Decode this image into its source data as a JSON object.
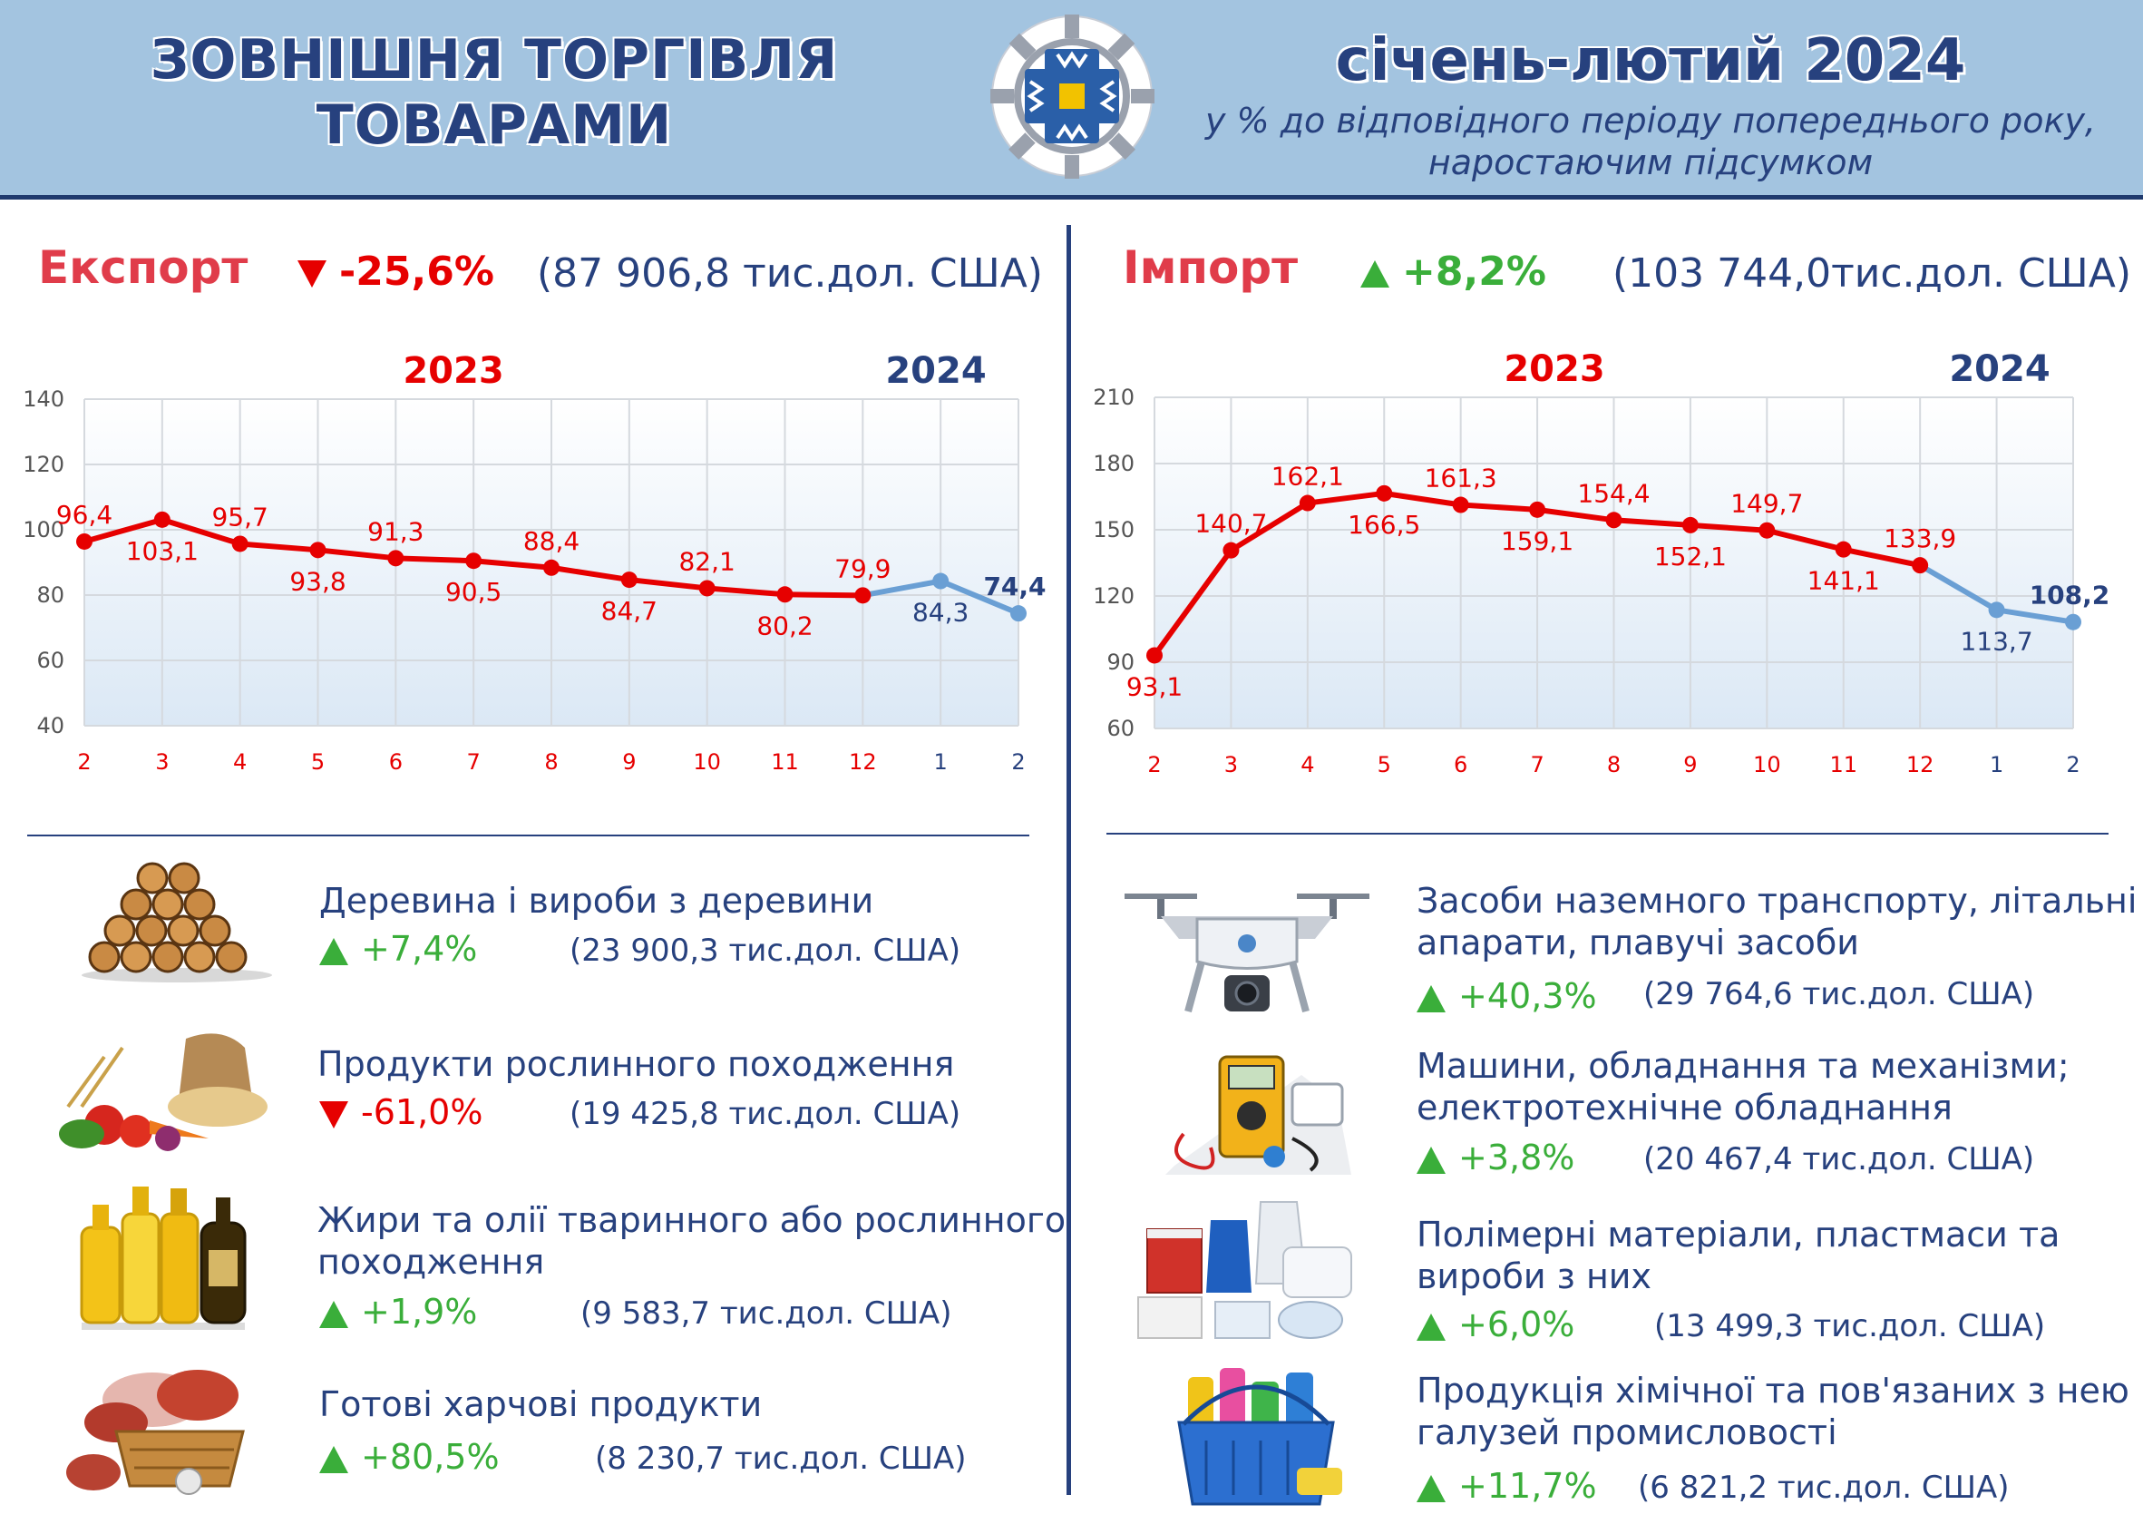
{
  "header": {
    "title_line1": "ЗОВНІШНЯ ТОРГІВЛЯ",
    "title_line2": "ТОВАРАМИ",
    "period": "січень-лютий 2024",
    "subtitle_line1": "у % до відповідного періоду попереднього року,",
    "subtitle_line2": "наростаючим підсумком"
  },
  "export": {
    "label": "Експорт",
    "change": "-25,6%",
    "total": "(87 906,8 тис.дол. США)",
    "items": [
      {
        "name": "Деревина і вироби з деревини",
        "change": "+7,4%",
        "dir": "up",
        "total": "(23 900,3 тис.дол. США)",
        "icon": "firewood-icon"
      },
      {
        "name": "Продукти рослинного походження",
        "change": "-61,0%",
        "dir": "down",
        "total": "(19 425,8 тис.дол. США)",
        "icon": "vegetables-grain-icon"
      },
      {
        "name": "Жири та олії тваринного або рослинного",
        "name2": "походження",
        "change": "+1,9%",
        "dir": "up",
        "total": "(9 583,7 тис.дол. США)",
        "icon": "oil-bottles-icon"
      },
      {
        "name": "Готові харчові продукти",
        "change": "+80,5%",
        "dir": "up",
        "total": "(8 230,7 тис.дол. США)",
        "icon": "meat-basket-icon"
      }
    ]
  },
  "import": {
    "label": "Імпорт",
    "change": "+8,2%",
    "total": "(103 744,0тис.дол. США)",
    "items": [
      {
        "name": "Засоби наземного транспорту, літальні",
        "name2": "апарати, плавучі засоби",
        "change": "+40,3%",
        "dir": "up",
        "total": "(29 764,6 тис.дол. США)",
        "icon": "drone-icon"
      },
      {
        "name": "Машини, обладнання та механізми;",
        "name2": "електротехнічне обладнання",
        "change": "+3,8%",
        "dir": "up",
        "total": "(20 467,4 тис.дол. США)",
        "icon": "multimeter-icon"
      },
      {
        "name": "Полімерні матеріали, пластмаси та",
        "name2": "вироби з них",
        "change": "+6,0%",
        "dir": "up",
        "total": "(13 499,3 тис.дол. США)",
        "icon": "plastic-containers-icon"
      },
      {
        "name": "Продукція хімічної та пов'язаних з нею",
        "name2": "галузей промисловості",
        "change": "+11,7%",
        "dir": "up",
        "total": "(6 821,2 тис.дол. США)",
        "icon": "cleaning-basket-icon"
      }
    ]
  },
  "colors": {
    "accent_red": "#e60000",
    "accent_blue": "#6a9fd4",
    "navy": "#27417e",
    "green": "#3aae3a",
    "header_bg": "#a3c4e0"
  },
  "chart_data": [
    {
      "type": "line",
      "year_labels": [
        "2023",
        "2024"
      ],
      "x": [
        "2",
        "3",
        "4",
        "5",
        "6",
        "7",
        "8",
        "9",
        "10",
        "11",
        "12",
        "1",
        "2"
      ],
      "values": [
        96.4,
        103.1,
        95.7,
        93.8,
        91.3,
        90.5,
        88.4,
        84.7,
        82.1,
        80.2,
        79.9,
        84.3,
        74.4
      ],
      "value_labels": [
        "96,4",
        "103,1",
        "95,7",
        "93,8",
        "91,3",
        "90,5",
        "88,4",
        "84,7",
        "82,1",
        "80,2",
        "79,9",
        "84,3",
        "74,4"
      ],
      "ylim": [
        40,
        140
      ],
      "yticks": [
        40,
        60,
        80,
        100,
        120,
        140
      ],
      "grid": true
    },
    {
      "type": "line",
      "year_labels": [
        "2023",
        "2024"
      ],
      "x": [
        "2",
        "3",
        "4",
        "5",
        "6",
        "7",
        "8",
        "9",
        "10",
        "11",
        "12",
        "1",
        "2"
      ],
      "values": [
        93.1,
        140.7,
        162.1,
        166.5,
        161.3,
        159.1,
        154.4,
        152.1,
        149.7,
        141.1,
        133.9,
        113.7,
        108.2
      ],
      "value_labels": [
        "93,1",
        "140,7",
        "162,1",
        "166,5",
        "161,3",
        "159,1",
        "154,4",
        "152,1",
        "149,7",
        "141,1",
        "133,9",
        "113,7",
        "108,2"
      ],
      "ylim": [
        60,
        210
      ],
      "yticks": [
        60,
        90,
        120,
        150,
        180,
        210
      ],
      "grid": true
    }
  ]
}
